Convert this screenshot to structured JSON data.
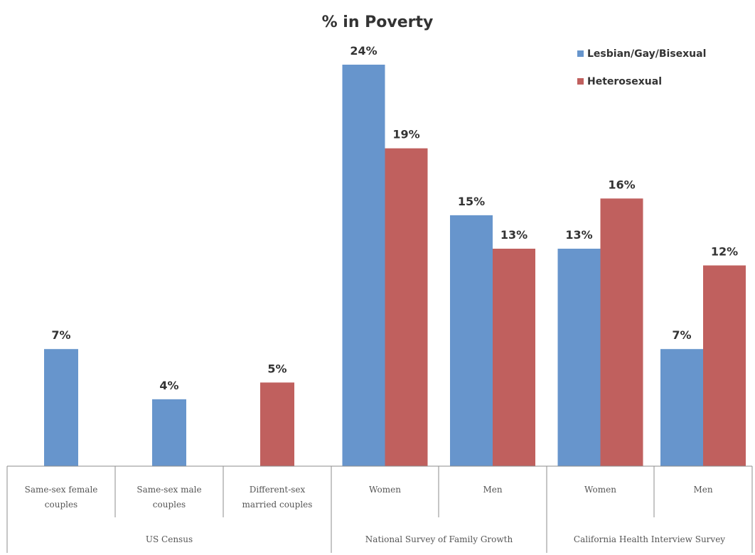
{
  "chart_data": {
    "type": "bar",
    "title": "% in Poverty",
    "legend_position": "top-right",
    "grid": false,
    "ylim": [
      0,
      26
    ],
    "series": [
      {
        "name": "Lesbian/Gay/Bisexual",
        "color": "#6795cc"
      },
      {
        "name": "Heterosexual",
        "color": "#c0605e"
      }
    ],
    "groups": [
      {
        "label": "US Census",
        "categories": [
          {
            "label": [
              "Same-sex female",
              "couples"
            ],
            "bars": [
              {
                "series": 0,
                "value": 7,
                "label": "7%"
              }
            ]
          },
          {
            "label": [
              "Same-sex male",
              "couples"
            ],
            "bars": [
              {
                "series": 0,
                "value": 4,
                "label": "4%"
              }
            ]
          },
          {
            "label": [
              "Different-sex",
              "married couples"
            ],
            "bars": [
              {
                "series": 1,
                "value": 5,
                "label": "5%"
              }
            ]
          }
        ]
      },
      {
        "label": "National Survey of Family Growth",
        "categories": [
          {
            "label": [
              "Women"
            ],
            "bars": [
              {
                "series": 0,
                "value": 24,
                "label": "24%"
              },
              {
                "series": 1,
                "value": 19,
                "label": "19%"
              }
            ]
          },
          {
            "label": [
              "Men"
            ],
            "bars": [
              {
                "series": 0,
                "value": 15,
                "label": "15%"
              },
              {
                "series": 1,
                "value": 13,
                "label": "13%"
              }
            ]
          }
        ]
      },
      {
        "label": "California Health Interview Survey",
        "categories": [
          {
            "label": [
              "Women"
            ],
            "bars": [
              {
                "series": 0,
                "value": 13,
                "label": "13%"
              },
              {
                "series": 1,
                "value": 16,
                "label": "16%"
              }
            ]
          },
          {
            "label": [
              "Men"
            ],
            "bars": [
              {
                "series": 0,
                "value": 7,
                "label": "7%"
              },
              {
                "series": 1,
                "value": 12,
                "label": "12%"
              }
            ]
          }
        ]
      }
    ]
  }
}
